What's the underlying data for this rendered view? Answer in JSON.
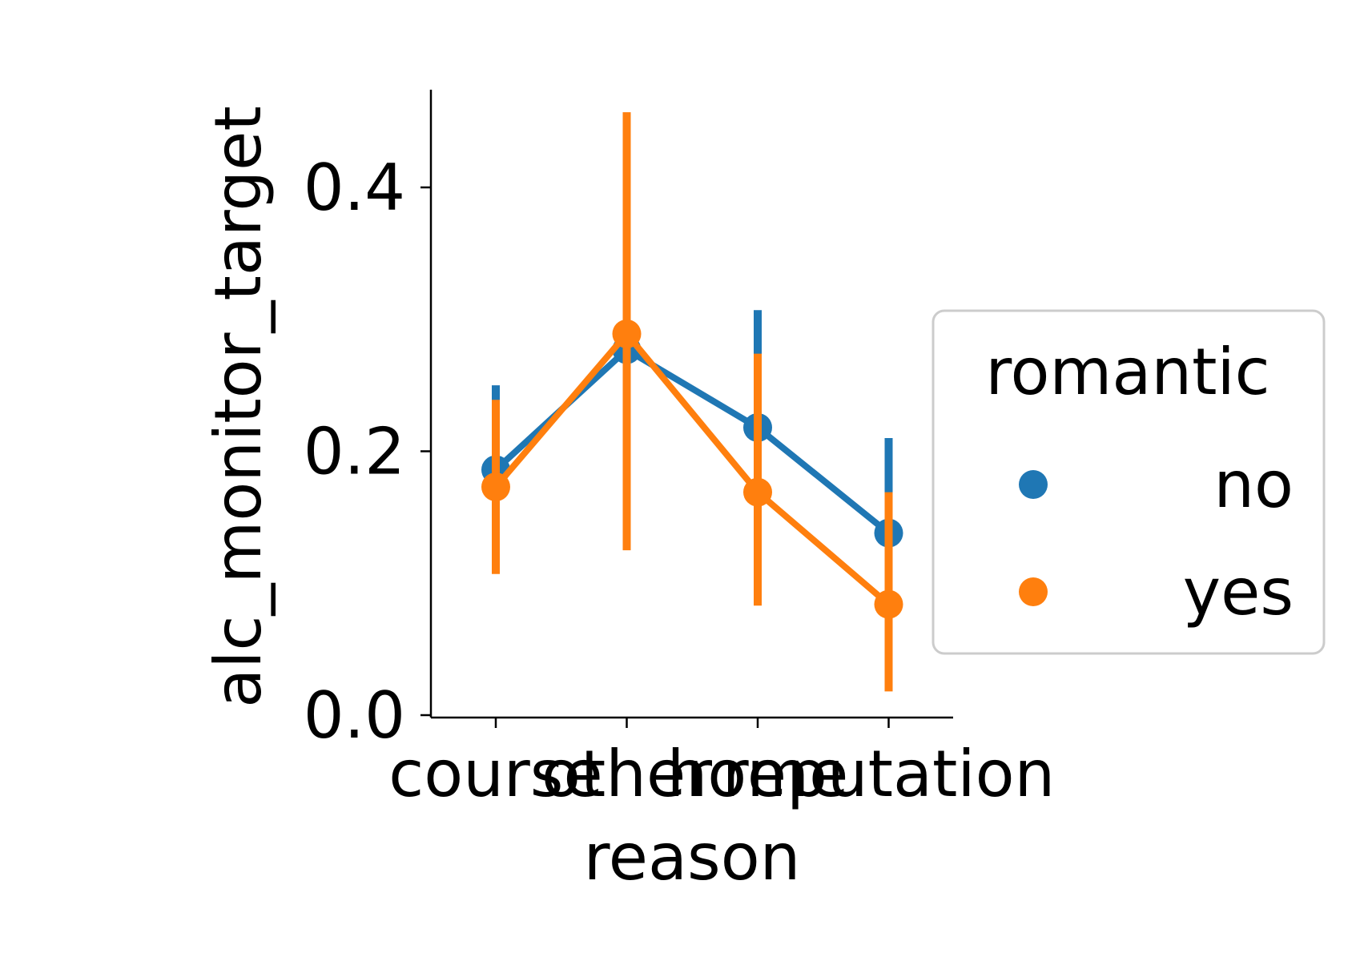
{
  "chart_data": {
    "type": "line",
    "xlabel": "reason",
    "ylabel": "alc_monitor_target",
    "categories": [
      "course",
      "other",
      "home",
      "reputation"
    ],
    "ylim": [
      0.0,
      0.46
    ],
    "yticks": [
      0.0,
      0.2,
      0.4
    ],
    "ytick_labels": [
      "0.0",
      "0.2",
      "0.4"
    ],
    "legend": {
      "title": "romantic",
      "placement": "right"
    },
    "series": [
      {
        "name": "no",
        "color": "#1f77b4",
        "values": [
          0.186,
          0.277,
          0.218,
          0.138
        ],
        "ci_low": [
          0.125,
          0.19,
          0.14,
          0.075
        ],
        "ci_high": [
          0.25,
          0.36,
          0.307,
          0.21
        ]
      },
      {
        "name": "yes",
        "color": "#ff7f0e",
        "values": [
          0.173,
          0.289,
          0.169,
          0.084
        ],
        "ci_low": [
          0.107,
          0.125,
          0.083,
          0.018
        ],
        "ci_high": [
          0.239,
          0.457,
          0.274,
          0.169
        ]
      }
    ]
  }
}
